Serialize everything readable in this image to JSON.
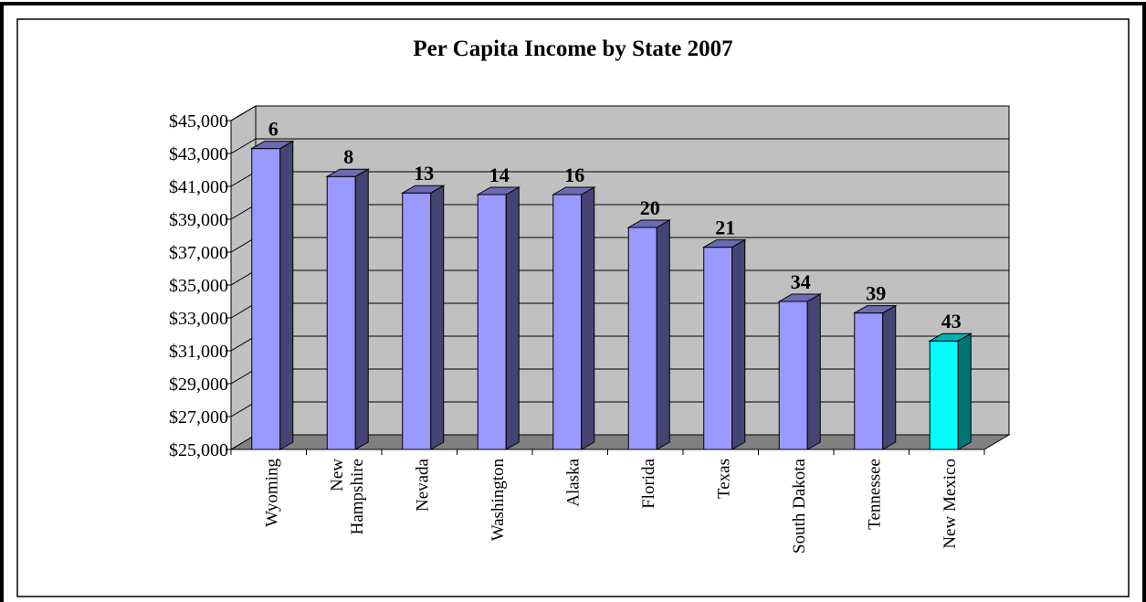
{
  "chart_data": {
    "type": "bar",
    "title": "Per Capita Income by State 2007",
    "xlabel": "",
    "ylabel": "",
    "ylim": [
      25000,
      45000
    ],
    "yticks": [
      "$25,000",
      "$27,000",
      "$29,000",
      "$31,000",
      "$33,000",
      "$35,000",
      "$37,000",
      "$39,000",
      "$41,000",
      "$43,000",
      "$45,000"
    ],
    "categories": [
      "Wyoming",
      "New Hampshire",
      "Nevada",
      "Washington",
      "Alaska",
      "Florida",
      "Texas",
      "South Dakota",
      "Tennessee",
      "New Mexico"
    ],
    "values": [
      43300,
      41600,
      40600,
      40500,
      40500,
      38500,
      37300,
      34000,
      33300,
      31600
    ],
    "rank_labels": [
      "6",
      "8",
      "13",
      "14",
      "16",
      "20",
      "21",
      "34",
      "39",
      "43"
    ],
    "colors": {
      "bar": "#9999ff",
      "highlight_bar": "#00ffff",
      "wall": "#c0c0c0",
      "floor": "#808080"
    },
    "highlight_index": 9,
    "grid": true
  }
}
